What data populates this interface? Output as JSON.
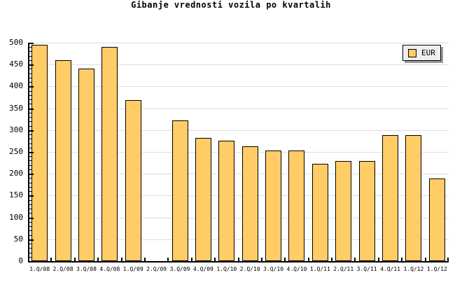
{
  "window": {
    "background": "#FFFFFF"
  },
  "chart_data": {
    "type": "bar",
    "title": "Gibanje vrednosti vozila po kvartalih",
    "legend": "EUR",
    "legend_position": "top-right",
    "categories": [
      "1.Q/08",
      "2.Q/08",
      "3.Q/08",
      "4.Q/08",
      "1.Q/09",
      "2.Q/09",
      "3.Q/09",
      "4.Q/09",
      "1.Q/10",
      "2.Q/10",
      "3.Q/10",
      "4.Q/10",
      "1.Q/11",
      "2.Q/11",
      "3.Q/11",
      "4.Q/11",
      "1.Q/12",
      "1.Q/12"
    ],
    "series": [
      {
        "name": "EUR",
        "values": [
          495,
          460,
          440,
          490,
          368,
          null,
          322,
          282,
          276,
          263,
          254,
          254,
          222,
          229,
          229,
          288,
          288,
          189
        ]
      }
    ],
    "xlabel": "",
    "ylabel": "",
    "ylim": [
      0,
      500
    ],
    "ytick_major": 50,
    "ytick_minor": 10,
    "y_tick_labels": [
      "0",
      "50",
      "100",
      "150",
      "200",
      "250",
      "300",
      "350",
      "400",
      "450",
      "500"
    ],
    "grid": true,
    "colors": {
      "bar_fill": "#FFCC66",
      "bar_border": "#000000",
      "grid_line": "#DDDDDD",
      "axis": "#000000",
      "legend_bg": "#EEEEEE",
      "legend_border": "#000000",
      "legend_shadow": "#999999",
      "text": "#000000",
      "background": "#FFFFFF"
    }
  }
}
